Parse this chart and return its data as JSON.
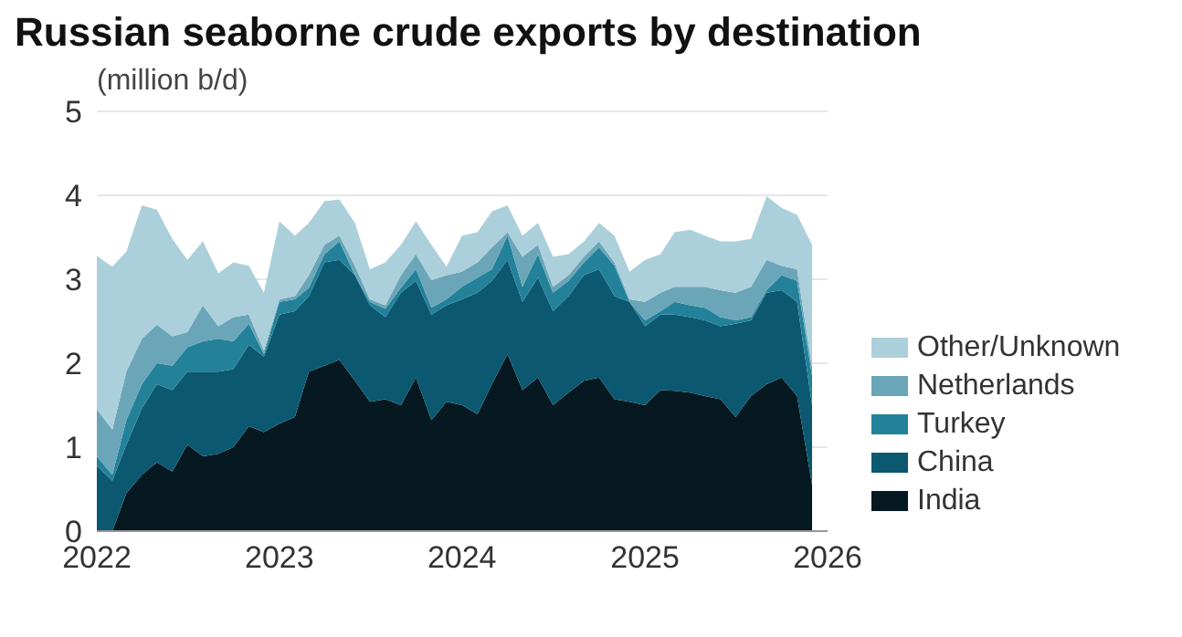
{
  "chart_data": {
    "type": "area",
    "stacked": true,
    "title": "Russian seaborne crude exports by destination",
    "ylabel": "(million b/d)",
    "x": [
      "2022-01",
      "2022-02",
      "2022-03",
      "2022-04",
      "2022-05",
      "2022-06",
      "2022-07",
      "2022-08",
      "2022-09",
      "2022-10",
      "2022-11",
      "2022-12",
      "2023-01",
      "2023-02",
      "2023-03",
      "2023-04",
      "2023-05",
      "2023-06",
      "2023-07",
      "2023-08",
      "2023-09",
      "2023-10",
      "2023-11",
      "2023-12",
      "2024-01",
      "2024-02",
      "2024-03",
      "2024-04",
      "2024-05",
      "2024-06",
      "2024-07",
      "2024-08",
      "2024-09",
      "2024-10",
      "2024-11",
      "2024-12",
      "2025-01",
      "2025-02",
      "2025-03",
      "2025-04",
      "2025-05",
      "2025-06",
      "2025-07",
      "2025-08",
      "2025-09",
      "2025-10",
      "2025-11",
      "2025-12"
    ],
    "xlim": [
      "2022-01",
      "2026-01"
    ],
    "xticks": [
      "2022",
      "2023",
      "2024",
      "2025",
      "2026"
    ],
    "ylim": [
      0,
      5
    ],
    "yticks": [
      0,
      1,
      2,
      3,
      4,
      5
    ],
    "grid": "y",
    "legend": "right",
    "series": [
      {
        "name": "India",
        "color": "#061820",
        "values": [
          0,
          0,
          0.45,
          0.67,
          0.82,
          0.71,
          1.03,
          0.89,
          0.92,
          1.0,
          1.25,
          1.18,
          1.28,
          1.36,
          1.9,
          1.97,
          2.04,
          1.79,
          1.54,
          1.57,
          1.5,
          1.83,
          1.32,
          1.54,
          1.5,
          1.39,
          1.75,
          2.11,
          1.68,
          1.83,
          1.5,
          1.65,
          1.79,
          1.83,
          1.57,
          1.54,
          1.5,
          1.68,
          1.67,
          1.65,
          1.61,
          1.57,
          1.36,
          1.61,
          1.75,
          1.83,
          1.61,
          0.55
        ]
      },
      {
        "name": "China",
        "color": "#0b5870",
        "values": [
          0.78,
          0.6,
          0.58,
          0.79,
          0.93,
          0.97,
          0.87,
          1.01,
          0.98,
          0.93,
          0.97,
          0.9,
          1.3,
          1.26,
          0.9,
          1.23,
          1.19,
          1.26,
          1.15,
          0.98,
          1.34,
          1.15,
          1.26,
          1.15,
          1.26,
          1.45,
          1.23,
          1.12,
          1.05,
          1.19,
          1.12,
          1.15,
          1.26,
          1.29,
          1.23,
          1.19,
          0.94,
          0.9,
          0.91,
          0.9,
          0.9,
          0.87,
          1.11,
          0.9,
          1.09,
          1.04,
          1.12,
          0.95
        ]
      },
      {
        "name": "Turkey",
        "color": "#23819a",
        "values": [
          0.11,
          0.07,
          0.29,
          0.29,
          0.25,
          0.29,
          0.29,
          0.36,
          0.39,
          0.33,
          0.25,
          0.03,
          0.15,
          0.14,
          0.1,
          0.1,
          0.22,
          0,
          0.04,
          0.1,
          0.06,
          0.14,
          0.08,
          0.07,
          0.15,
          0.18,
          0.14,
          0.29,
          0.18,
          0.28,
          0.22,
          0.18,
          0.15,
          0.26,
          0.36,
          0,
          0.07,
          0.04,
          0.15,
          0.14,
          0.15,
          0.11,
          0.04,
          0.04,
          0.03,
          0.18,
          0.25,
          0.35
        ]
      },
      {
        "name": "Netherlands",
        "color": "#6aa6b8",
        "values": [
          0.56,
          0.54,
          0.58,
          0.54,
          0.46,
          0.35,
          0.18,
          0.43,
          0.15,
          0.29,
          0.11,
          0.04,
          0.03,
          0.04,
          0.15,
          0.11,
          0.07,
          0.11,
          0.03,
          0.04,
          0.15,
          0.18,
          0.33,
          0.29,
          0.18,
          0.18,
          0.26,
          0.04,
          0.36,
          0.11,
          0.07,
          0.07,
          0.07,
          0.07,
          0.04,
          0.03,
          0.22,
          0.22,
          0.18,
          0.22,
          0.25,
          0.32,
          0.33,
          0.36,
          0.36,
          0.11,
          0.14,
          0.1
        ]
      },
      {
        "name": "Other/Unknown",
        "color": "#acd0db",
        "values": [
          1.83,
          1.94,
          1.43,
          1.59,
          1.37,
          1.16,
          0.86,
          0.76,
          0.63,
          0.65,
          0.58,
          0.69,
          0.93,
          0.72,
          0.62,
          0.52,
          0.43,
          0.51,
          0.36,
          0.51,
          0.36,
          0.39,
          0.42,
          0.1,
          0.43,
          0.36,
          0.43,
          0.32,
          0.25,
          0.26,
          0.36,
          0.25,
          0.18,
          0.22,
          0.32,
          0.33,
          0.5,
          0.46,
          0.65,
          0.68,
          0.61,
          0.58,
          0.61,
          0.57,
          0.76,
          0.69,
          0.65,
          1.46
        ]
      }
    ]
  }
}
